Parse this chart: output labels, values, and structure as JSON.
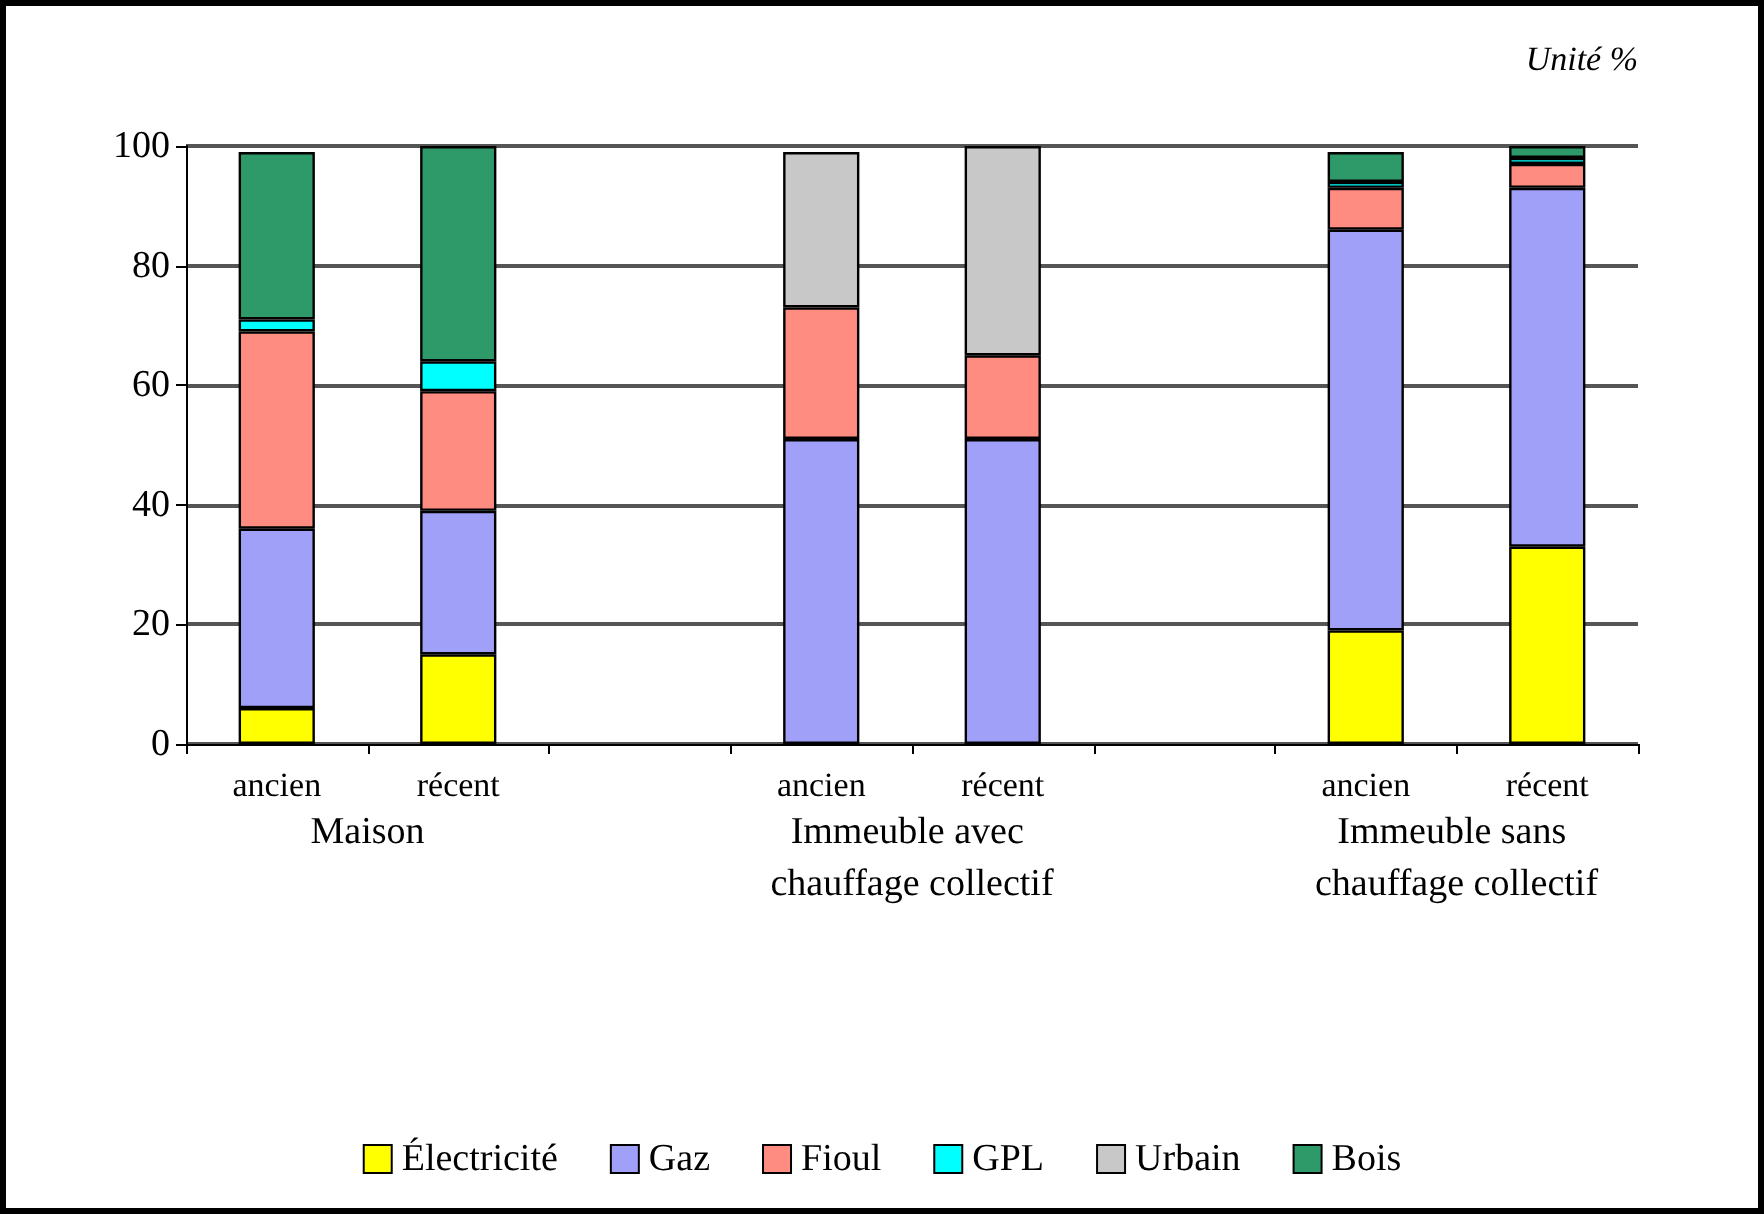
{
  "chart_data": {
    "type": "bar",
    "stacked": true,
    "categories": [
      "ancien",
      "récent",
      null,
      "ancien",
      "récent",
      null,
      "ancien",
      "récent"
    ],
    "series": [
      {
        "name": "Électricité",
        "color": "#ffff00",
        "values": [
          6,
          15,
          null,
          null,
          null,
          null,
          19,
          33
        ]
      },
      {
        "name": "Gaz",
        "color": "#a0a0f8",
        "values": [
          30,
          24,
          null,
          51,
          51,
          null,
          67,
          60
        ]
      },
      {
        "name": "Fioul",
        "color": "#ff8c80",
        "values": [
          33,
          20,
          null,
          22,
          14,
          null,
          7,
          4
        ]
      },
      {
        "name": "GPL",
        "color": "#00ffff",
        "values": [
          2,
          5,
          null,
          null,
          null,
          null,
          1,
          1
        ]
      },
      {
        "name": "Urbain",
        "color": "#c8c8c8",
        "values": [
          null,
          null,
          null,
          26,
          35,
          null,
          null,
          null
        ]
      },
      {
        "name": "Bois",
        "color": "#2e9a6a",
        "values": [
          28,
          36,
          null,
          null,
          null,
          null,
          5,
          2
        ]
      }
    ],
    "ylim": [
      0,
      100
    ],
    "yticks": [
      0,
      20,
      40,
      60,
      80,
      100
    ],
    "grid": "y",
    "legend": "bottom",
    "annotations": [
      "Unité %",
      "Maison",
      "Immeuble avec chauffage collectif",
      "Immeuble sans chauffage collectif"
    ]
  }
}
